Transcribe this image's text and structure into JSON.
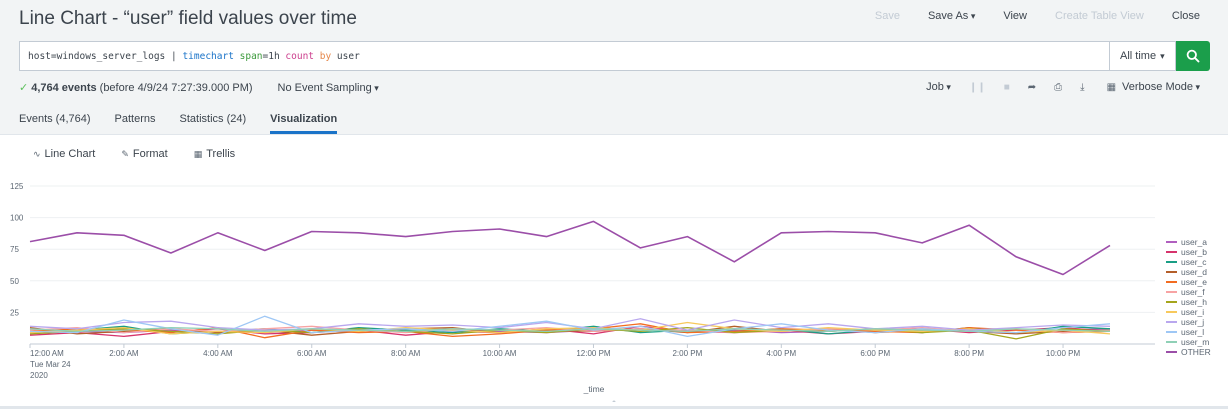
{
  "header": {
    "title": "Line Chart - “user” field values over time",
    "actions": {
      "save": "Save",
      "save_as": "Save As",
      "view": "View",
      "create_table_view": "Create Table View",
      "close": "Close"
    }
  },
  "search": {
    "query_parts": {
      "host": "host=windows_server_logs | ",
      "cmd": "timechart",
      "arg_span": " span",
      "span_val": "=1h ",
      "func": "count",
      "by": " by",
      "field": " user"
    },
    "time_range": "All time",
    "go_icon": "search-icon",
    "colors": {
      "go": "#1b9e4b"
    }
  },
  "status": {
    "event_count": "4,764 events",
    "before_text": "(before 4/9/24 7:27:39.000 PM)",
    "sampling": "No Event Sampling",
    "job": "Job",
    "mode": "Verbose Mode"
  },
  "tabs": [
    {
      "label": "Events (4,764)"
    },
    {
      "label": "Patterns"
    },
    {
      "label": "Statistics (24)"
    },
    {
      "label": "Visualization"
    }
  ],
  "viz_toolbar": {
    "line_chart": "Line Chart",
    "format": "Format",
    "trellis": "Trellis"
  },
  "chart_data": {
    "type": "line",
    "xlabel": "_time",
    "ylabel": "",
    "ylim": [
      0,
      125
    ],
    "yticks": [
      25,
      50,
      75,
      100,
      125
    ],
    "x_tick_labels": [
      "12:00 AM",
      "2:00 AM",
      "4:00 AM",
      "6:00 AM",
      "8:00 AM",
      "10:00 AM",
      "12:00 PM",
      "2:00 PM",
      "4:00 PM",
      "6:00 PM",
      "8:00 PM",
      "10:00 PM"
    ],
    "x_first_sub1": "Tue Mar 24",
    "x_first_sub2": "2020",
    "legend_position": "right",
    "x": [
      "00:00",
      "01:00",
      "02:00",
      "03:00",
      "04:00",
      "05:00",
      "06:00",
      "07:00",
      "08:00",
      "09:00",
      "10:00",
      "11:00",
      "12:00",
      "13:00",
      "14:00",
      "15:00",
      "16:00",
      "17:00",
      "18:00",
      "19:00",
      "20:00",
      "21:00",
      "22:00",
      "23:00"
    ],
    "series": [
      {
        "name": "user_a",
        "color": "#b05fbf",
        "values": [
          12,
          10,
          9,
          11,
          10,
          9,
          11,
          10,
          12,
          11,
          10,
          9,
          11,
          12,
          10,
          11,
          9,
          10,
          12,
          11,
          10,
          9,
          11,
          12
        ]
      },
      {
        "name": "user_b",
        "color": "#d6336c",
        "values": [
          7,
          9,
          6,
          10,
          12,
          8,
          9,
          11,
          7,
          10,
          9,
          12,
          8,
          14,
          10,
          9,
          11,
          8,
          10,
          12,
          9,
          11,
          13,
          10
        ]
      },
      {
        "name": "user_c",
        "color": "#1a9e85",
        "values": [
          9,
          11,
          14,
          8,
          10,
          12,
          9,
          13,
          11,
          9,
          12,
          10,
          14,
          9,
          11,
          10,
          12,
          8,
          11,
          9,
          13,
          8,
          14,
          12
        ]
      },
      {
        "name": "user_d",
        "color": "#b45f2a",
        "values": [
          13,
          8,
          10,
          12,
          9,
          11,
          7,
          10,
          12,
          13,
          9,
          11,
          10,
          12,
          9,
          14,
          10,
          12,
          9,
          11,
          10,
          8,
          10,
          11
        ]
      },
      {
        "name": "user_e",
        "color": "#f26c21",
        "values": [
          10,
          12,
          11,
          9,
          13,
          5,
          11,
          9,
          10,
          6,
          8,
          11,
          12,
          16,
          9,
          10,
          12,
          11,
          10,
          9,
          13,
          11,
          9,
          10
        ]
      },
      {
        "name": "user_f",
        "color": "#f7a3a3",
        "values": [
          11,
          13,
          9,
          12,
          10,
          12,
          14,
          11,
          9,
          12,
          11,
          13,
          10,
          12,
          11,
          9,
          10,
          12,
          11,
          13,
          10,
          12,
          9,
          11
        ]
      },
      {
        "name": "user_h",
        "color": "#a5a51c",
        "values": [
          8,
          10,
          12,
          10,
          8,
          11,
          9,
          12,
          10,
          8,
          11,
          9,
          12,
          10,
          13,
          9,
          11,
          10,
          12,
          9,
          11,
          4,
          12,
          10
        ]
      },
      {
        "name": "user_i",
        "color": "#f7c95c",
        "values": [
          9,
          11,
          13,
          8,
          10,
          9,
          12,
          10,
          13,
          11,
          9,
          12,
          13,
          11,
          17,
          12,
          10,
          13,
          11,
          10,
          12,
          9,
          11,
          8
        ]
      },
      {
        "name": "user_j",
        "color": "#b9a7ee",
        "values": [
          14,
          12,
          17,
          18,
          13,
          11,
          12,
          16,
          14,
          15,
          13,
          17,
          12,
          20,
          11,
          19,
          13,
          16,
          12,
          14,
          11,
          13,
          15,
          14
        ]
      },
      {
        "name": "user_l",
        "color": "#9ec7f5",
        "values": [
          10,
          9,
          19,
          12,
          7,
          22,
          9,
          11,
          12,
          10,
          14,
          18,
          11,
          14,
          6,
          12,
          16,
          11,
          9,
          12,
          10,
          9,
          13,
          16
        ]
      },
      {
        "name": "user_m",
        "color": "#8fd0b6",
        "values": [
          12,
          10,
          11,
          13,
          12,
          10,
          12,
          11,
          10,
          12,
          11,
          10,
          12,
          11,
          10,
          12,
          11,
          10,
          12,
          11,
          10,
          12,
          11,
          10
        ]
      },
      {
        "name": "OTHER",
        "color": "#9b4ea8",
        "values": [
          81,
          88,
          86,
          72,
          88,
          74,
          89,
          88,
          85,
          89,
          91,
          85,
          97,
          76,
          85,
          65,
          88,
          89,
          88,
          80,
          94,
          69,
          55,
          78
        ]
      }
    ]
  }
}
